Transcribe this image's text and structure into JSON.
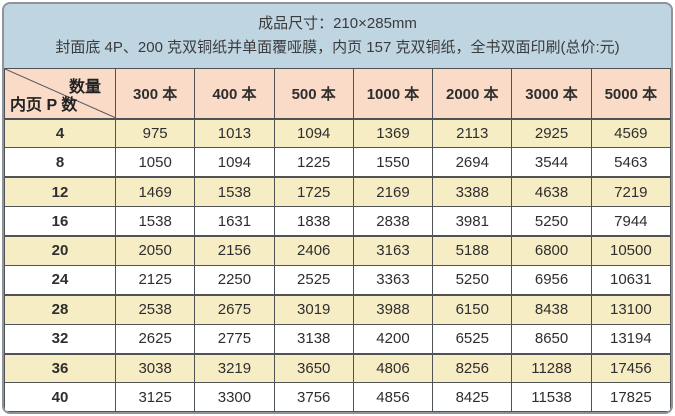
{
  "banner": {
    "line1": "成品尺寸：210×285mm",
    "line2": "封面底 4P、200 克双铜纸并单面覆哑膜，内页 157 克双铜纸，全书双面印刷(总价:元)"
  },
  "table": {
    "corner": {
      "top_right": "数量",
      "bottom_left": "内页 P 数"
    },
    "columns": [
      "300 本",
      "400 本",
      "500 本",
      "1000 本",
      "2000 本",
      "3000 本",
      "5000 本"
    ],
    "rows": [
      {
        "pages": "4",
        "prices": [
          "975",
          "1013",
          "1094",
          "1369",
          "2113",
          "2925",
          "4569"
        ]
      },
      {
        "pages": "8",
        "prices": [
          "1050",
          "1094",
          "1225",
          "1550",
          "2694",
          "3544",
          "5463"
        ]
      },
      {
        "pages": "12",
        "prices": [
          "1469",
          "1538",
          "1725",
          "2169",
          "3388",
          "4638",
          "7219"
        ]
      },
      {
        "pages": "16",
        "prices": [
          "1538",
          "1631",
          "1838",
          "2838",
          "3981",
          "5250",
          "7944"
        ]
      },
      {
        "pages": "20",
        "prices": [
          "2050",
          "2156",
          "2406",
          "3163",
          "5188",
          "6800",
          "10500"
        ]
      },
      {
        "pages": "24",
        "prices": [
          "2125",
          "2250",
          "2525",
          "3363",
          "5250",
          "6956",
          "10631"
        ]
      },
      {
        "pages": "28",
        "prices": [
          "2538",
          "2675",
          "3019",
          "3988",
          "6150",
          "8438",
          "13100"
        ]
      },
      {
        "pages": "32",
        "prices": [
          "2625",
          "2775",
          "3138",
          "4200",
          "6525",
          "8650",
          "13194"
        ]
      },
      {
        "pages": "36",
        "prices": [
          "3038",
          "3219",
          "3650",
          "4806",
          "8256",
          "11288",
          "17456"
        ]
      },
      {
        "pages": "40",
        "prices": [
          "3125",
          "3300",
          "3756",
          "4856",
          "8425",
          "11538",
          "17825"
        ]
      }
    ]
  },
  "colors": {
    "banner_bg": "#bfd6e2",
    "header_bg": "#f9dbc8",
    "alt_row_bg": "#f7edc5",
    "grid_line": "#4f5356",
    "panel_border": "#8e9499"
  }
}
